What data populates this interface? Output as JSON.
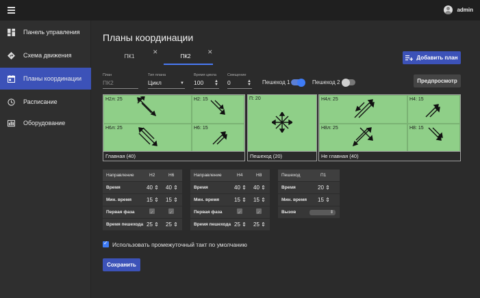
{
  "topbar": {
    "user": "admin",
    "menu_icon": "hamburger-icon",
    "user_icon": "user-avatar-icon"
  },
  "sidebar": {
    "items": [
      {
        "label": "Панель управления",
        "icon": "dashboard-icon",
        "active": false
      },
      {
        "label": "Схема движения",
        "icon": "directions-icon",
        "active": false
      },
      {
        "label": "Планы координации",
        "icon": "calendar-icon",
        "active": true
      },
      {
        "label": "Расписание",
        "icon": "clock-icon",
        "active": false
      },
      {
        "label": "Оборудование",
        "icon": "equipment-icon",
        "active": false
      }
    ]
  },
  "main": {
    "title": "Планы координации",
    "tabs": [
      {
        "label": "ПК1",
        "active": false
      },
      {
        "label": "ПК2",
        "active": true
      }
    ],
    "add_plan_button": "Добавить план",
    "preview_button": "Предпросмотр",
    "save_button": "Сохранить"
  },
  "form": {
    "plan": {
      "label": "План",
      "placeholder": "ПК2"
    },
    "plan_type": {
      "label": "Тип плана",
      "value": "Цикл"
    },
    "cycle_time": {
      "label": "Время цикла",
      "value": "100"
    },
    "offset": {
      "label": "Смещение",
      "value": "0"
    },
    "ped1": {
      "label": "Пешеход 1",
      "on": true
    },
    "ped2": {
      "label": "Пешеход 2",
      "on": false
    }
  },
  "phases": {
    "main": {
      "footer": "Главная (40)",
      "cells": [
        "Н2л: 25",
        "Н2: 15",
        "Н6л: 25",
        "Н6: 15"
      ]
    },
    "ped": {
      "footer": "Пешеход (20)",
      "cells": [
        "П: 20"
      ]
    },
    "secondary": {
      "footer": "Не главная (40)",
      "cells": [
        "Н4л: 25",
        "Н4: 15",
        "Н8л: 25",
        "Н8: 15"
      ]
    }
  },
  "table1": {
    "headers": [
      "Направление",
      "Н2",
      "Н6"
    ],
    "rows": [
      {
        "label": "Время",
        "v1": "40",
        "v2": "40"
      },
      {
        "label": "Мин. время",
        "v1": "15",
        "v2": "15"
      },
      {
        "label": "Первая фаза"
      },
      {
        "label": "Время пешехода",
        "v1": "25",
        "v2": "25"
      }
    ]
  },
  "table2": {
    "headers": [
      "Направление",
      "Н4",
      "Н8"
    ],
    "rows": [
      {
        "label": "Время",
        "v1": "40",
        "v2": "40"
      },
      {
        "label": "Мин. время",
        "v1": "15",
        "v2": "15"
      },
      {
        "label": "Первая фаза"
      },
      {
        "label": "Время пешехода",
        "v1": "25",
        "v2": "25"
      }
    ]
  },
  "table3": {
    "headers": [
      "Пешеход",
      "П1"
    ],
    "rows": [
      {
        "label": "Время",
        "v1": "20"
      },
      {
        "label": "Мин. время",
        "v1": "15"
      },
      {
        "label": "Вызов"
      }
    ]
  },
  "default_interstage": {
    "label": "Использовать промежуточный такт по умолчанию",
    "checked": true
  },
  "colors": {
    "accent": "#3c52b8",
    "phase_bg": "#8fcf88",
    "toggle_on": "#3e7bf5"
  }
}
